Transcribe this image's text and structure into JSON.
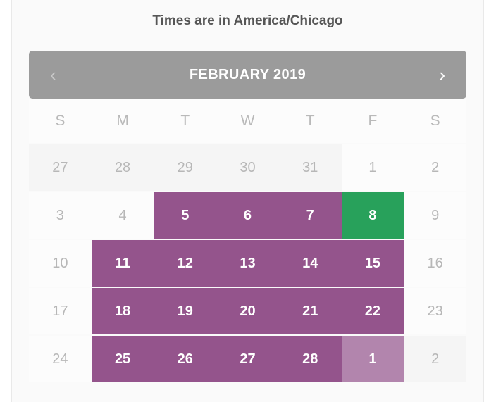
{
  "timezone_note": "Times are in America/Chicago",
  "calendar": {
    "month_label": "FEBRUARY 2019",
    "prev_icon": "‹",
    "next_icon": "›",
    "day_headers": [
      "S",
      "M",
      "T",
      "W",
      "T",
      "F",
      "S"
    ],
    "weeks": [
      [
        {
          "day": "27",
          "state": "outside"
        },
        {
          "day": "28",
          "state": "outside"
        },
        {
          "day": "29",
          "state": "outside"
        },
        {
          "day": "30",
          "state": "outside"
        },
        {
          "day": "31",
          "state": "outside"
        },
        {
          "day": "1",
          "state": "open"
        },
        {
          "day": "2",
          "state": "open"
        }
      ],
      [
        {
          "day": "3",
          "state": "open"
        },
        {
          "day": "4",
          "state": "open"
        },
        {
          "day": "5",
          "state": "selected"
        },
        {
          "day": "6",
          "state": "selected"
        },
        {
          "day": "7",
          "state": "selected"
        },
        {
          "day": "8",
          "state": "accent"
        },
        {
          "day": "9",
          "state": "open"
        }
      ],
      [
        {
          "day": "10",
          "state": "open"
        },
        {
          "day": "11",
          "state": "selected"
        },
        {
          "day": "12",
          "state": "selected"
        },
        {
          "day": "13",
          "state": "selected"
        },
        {
          "day": "14",
          "state": "selected"
        },
        {
          "day": "15",
          "state": "selected"
        },
        {
          "day": "16",
          "state": "open"
        }
      ],
      [
        {
          "day": "17",
          "state": "open"
        },
        {
          "day": "18",
          "state": "selected"
        },
        {
          "day": "19",
          "state": "selected"
        },
        {
          "day": "20",
          "state": "selected"
        },
        {
          "day": "21",
          "state": "selected"
        },
        {
          "day": "22",
          "state": "selected"
        },
        {
          "day": "23",
          "state": "open"
        }
      ],
      [
        {
          "day": "24",
          "state": "open"
        },
        {
          "day": "25",
          "state": "selected"
        },
        {
          "day": "26",
          "state": "selected"
        },
        {
          "day": "27",
          "state": "selected"
        },
        {
          "day": "28",
          "state": "selected"
        },
        {
          "day": "1",
          "state": "selected-muted"
        },
        {
          "day": "2",
          "state": "outside"
        }
      ]
    ]
  },
  "colors": {
    "selected_range": "#94548c",
    "selected_range_muted": "#b285ad",
    "accent_green": "#28a15b",
    "nav_bar": "#9b9b9b",
    "muted_text": "#b7b7b7"
  }
}
